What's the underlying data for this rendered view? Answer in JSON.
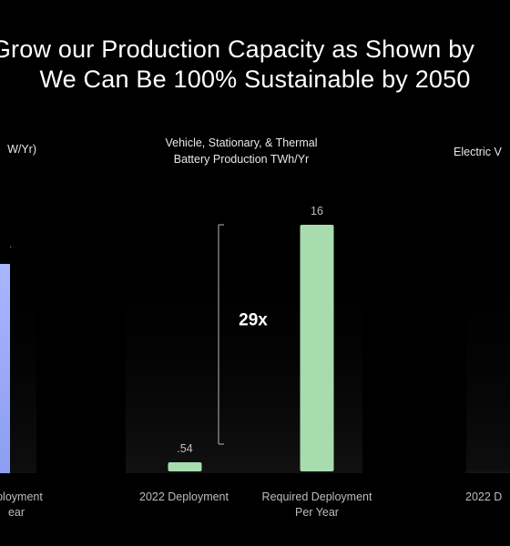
{
  "title": {
    "line1": "Grow our Production Capacity as Shown by",
    "line2": "We Can Be 100% Sustainable by 2050"
  },
  "panels": {
    "left": {
      "subtitle": "W/Yr)",
      "xlabel_line1": "eployment",
      "xlabel_line2": "ear"
    },
    "right": {
      "subtitle": "Electric V",
      "xlabel": "2022 D"
    }
  },
  "chart_data": {
    "type": "bar",
    "title": "Vehicle, Stationary, & Thermal Battery Production TWh/Yr",
    "title_lines": [
      "Vehicle, Stationary, & Thermal",
      "Battery Production TWh/Yr"
    ],
    "categories": [
      "2022 Deployment",
      "Required Deployment Per Year"
    ],
    "category_lines": [
      [
        "2022 Deployment"
      ],
      [
        "Required Deployment",
        "Per Year"
      ]
    ],
    "values": [
      0.54,
      16
    ],
    "value_labels": [
      ".54",
      "16"
    ],
    "ylim": [
      0,
      16
    ],
    "annotation": "29x",
    "colors": {
      "bar": "#a8dcae",
      "left_bar": "#a7b6ff",
      "bracket": "#9a9a9a",
      "bg": "#000000"
    },
    "grid": false
  }
}
